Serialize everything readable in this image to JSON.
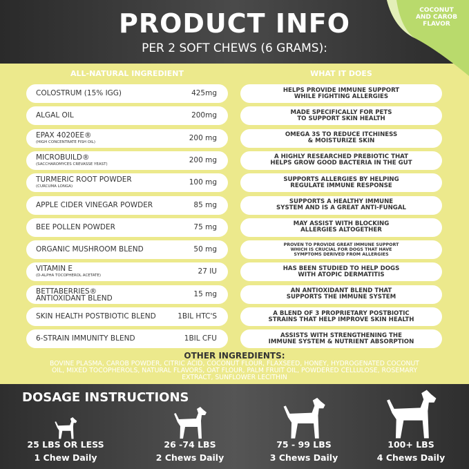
{
  "header": {
    "title": "PRODUCT INFO",
    "subtitle": "PER 2 SOFT CHEWS (6 GRAMS):",
    "badge": [
      "COCONUT",
      "AND CAROB",
      "FLAVOR"
    ]
  },
  "columns": {
    "left": "ALL-NATURAL INGREDIENT",
    "right": "WHAT IT DOES"
  },
  "rows": [
    {
      "name": "COLOSTRUM (15% IGG)",
      "amount": "425mg",
      "does": [
        "HELPS PROVIDE IMMUNE SUPPORT",
        "WHILE FIGHTING ALLERGIES"
      ]
    },
    {
      "name": "ALGAL OIL",
      "amount": "200mg",
      "does": [
        "MADE SPECIFICALLY FOR PETS",
        "TO SUPPORT SKIN HEALTH"
      ]
    },
    {
      "name": "EPAX 4020EE®",
      "sub": "(HIGH CONCENTRATE FISH OIL)",
      "amount": "200 mg",
      "does": [
        "OMEGA 3S TO REDUCE ITCHINESS",
        "& MOISTURIZE SKIN"
      ]
    },
    {
      "name": "MICROBUILD®",
      "sub": "(SACCHAROMYCES CREVASSE YEAST)",
      "amount": "200 mg",
      "does": [
        "A HIGHLY RESEARCHED PREBIOTIC THAT",
        "HELPS GROW GOOD BACTERIA IN THE GUT"
      ]
    },
    {
      "name": "TURMERIC ROOT POWDER",
      "sub": "(CURCUMA LONGA)",
      "amount": "100 mg",
      "does": [
        "SUPPORTS ALLERGIES BY HELPING",
        "REGULATE IMMUNE RESPONSE"
      ]
    },
    {
      "name": "APPLE CIDER VINEGAR POWDER",
      "amount": "85 mg",
      "does": [
        "SUPPORTS A HEALTHY IMMUNE",
        "SYSTEM AND IS A GREAT ANTI-FUNGAL"
      ]
    },
    {
      "name": "BEE POLLEN POWDER",
      "amount": "75 mg",
      "does": [
        "MAY ASSIST WITH BLOCKING",
        "ALLERGIES ALTOGETHER"
      ]
    },
    {
      "name": "ORGANIC MUSHROOM BLEND",
      "amount": "50 mg",
      "does": [
        "PROVEN TO PROVIDE GREAT IMMUNE SUPPORT",
        "WHICH IS CRUCIAL FOR DOGS THAT HAVE",
        "SYMPTOMS DERIVED FROM ALLERGIES"
      ]
    },
    {
      "name": "VITAMIN E",
      "sub": "(D-ALPHA TOCOPHEROL ACETATE)",
      "amount": "27 IU",
      "does": [
        "HAS BEEN STUDIED TO HELP DOGS",
        "WITH ATOPIC DERMATITIS"
      ]
    },
    {
      "name": "BETTABERRIES®",
      "sub2": "ANTIOXIDANT BLEND",
      "amount": "15 mg",
      "does": [
        "AN ANTIOXIDANT BLEND THAT",
        "SUPPORTS THE IMMUNE SYSTEM"
      ]
    },
    {
      "name": "SKIN HEALTH POSTBIOTIC BLEND",
      "amount": "1BIL HTC'S",
      "does": [
        "A BLEND OF 3 PROPRIETARY POSTBIOTIC",
        "STRAINS THAT HELP IMPROVE SKIN HEALTH"
      ]
    },
    {
      "name": "6-STRAIN IMMUNITY BLEND",
      "amount": "1BIL CFU",
      "does": [
        "ASSISTS WITH STRENGTHENING THE",
        "IMMUNE SYSTEM & NUTRIENT ABSORPTION"
      ]
    }
  ],
  "other": {
    "title": "OTHER INGREDIENTS:",
    "text": "BOVINE PLASMA, CAROB POWDER, CITRIC ACID, COCONUT FLOUR, FLAXSEED, HONEY, HYDROGENATED COCONUT OIL, MIXED TOCOPHEROLS, NATURAL FLAVORS, OAT FLOUR, PALM FRUIT OIL, POWDERED CELLULOSE, ROSEMARY EXTRACT, SUNFLOWER LECITHIN"
  },
  "dosage": {
    "title": "DOSAGE INSTRUCTIONS",
    "items": [
      {
        "weight": "25 LBS OR LESS",
        "amount": "1 Chew Daily"
      },
      {
        "weight": "26 -74 LBS",
        "amount": "2 Chews Daily"
      },
      {
        "weight": "75 - 99 LBS",
        "amount": "3 Chews Daily"
      },
      {
        "weight": "100+ LBS",
        "amount": "4 Chews Daily"
      }
    ]
  }
}
